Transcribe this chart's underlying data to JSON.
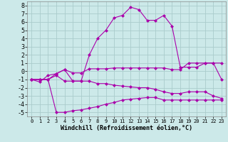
{
  "xlabel": "Windchill (Refroidissement éolien,°C)",
  "xlim": [
    -0.5,
    23.5
  ],
  "ylim": [
    -5.5,
    8.5
  ],
  "xticks": [
    0,
    1,
    2,
    3,
    4,
    5,
    6,
    7,
    8,
    9,
    10,
    11,
    12,
    13,
    14,
    15,
    16,
    17,
    18,
    19,
    20,
    21,
    22,
    23
  ],
  "yticks": [
    -5,
    -4,
    -3,
    -2,
    -1,
    0,
    1,
    2,
    3,
    4,
    5,
    6,
    7,
    8
  ],
  "background_color": "#cce9e9",
  "grid_color": "#aacccc",
  "line_color": "#aa00aa",
  "series": [
    {
      "x": [
        0,
        1,
        2,
        3,
        4,
        5,
        6,
        7,
        8,
        9,
        10,
        11,
        12,
        13,
        14,
        15,
        16,
        17,
        18,
        19,
        20,
        21,
        22,
        23
      ],
      "y": [
        -1,
        -1.3,
        -0.5,
        -0.3,
        0.2,
        -1.2,
        -1.2,
        2,
        4,
        5,
        6.5,
        6.8,
        7.8,
        7.5,
        6.2,
        6.2,
        6.8,
        5.5,
        0.5,
        0.5,
        0.5,
        1.0,
        1.0,
        -1.0
      ]
    },
    {
      "x": [
        0,
        1,
        2,
        3,
        4,
        5,
        6,
        7,
        8,
        9,
        10,
        11,
        12,
        13,
        14,
        15,
        16,
        17,
        18,
        19,
        20,
        21,
        22,
        23
      ],
      "y": [
        -1,
        -1,
        -1,
        -0.3,
        0.2,
        -0.2,
        -0.2,
        0.3,
        0.3,
        0.3,
        0.4,
        0.4,
        0.4,
        0.4,
        0.4,
        0.4,
        0.4,
        0.2,
        0.2,
        1.0,
        1.0,
        1.0,
        1.0,
        1.0
      ]
    },
    {
      "x": [
        0,
        1,
        2,
        3,
        4,
        5,
        6,
        7,
        8,
        9,
        10,
        11,
        12,
        13,
        14,
        15,
        16,
        17,
        18,
        19,
        20,
        21,
        22,
        23
      ],
      "y": [
        -1,
        -1,
        -1,
        -0.5,
        -1.2,
        -1.2,
        -1.2,
        -1.2,
        -1.5,
        -1.5,
        -1.7,
        -1.8,
        -1.9,
        -2.0,
        -2.0,
        -2.2,
        -2.5,
        -2.7,
        -2.7,
        -2.5,
        -2.5,
        -2.5,
        -3.0,
        -3.3
      ]
    },
    {
      "x": [
        0,
        1,
        2,
        3,
        4,
        5,
        6,
        7,
        8,
        9,
        10,
        11,
        12,
        13,
        14,
        15,
        16,
        17,
        18,
        19,
        20,
        21,
        22,
        23
      ],
      "y": [
        -1,
        -1,
        -1,
        -5,
        -5,
        -4.8,
        -4.7,
        -4.5,
        -4.3,
        -4.0,
        -3.8,
        -3.5,
        -3.4,
        -3.3,
        -3.2,
        -3.2,
        -3.5,
        -3.5,
        -3.5,
        -3.5,
        -3.5,
        -3.5,
        -3.5,
        -3.5
      ]
    }
  ],
  "font_size_xlabel": 6,
  "font_size_yticks": 6,
  "font_size_xticks": 5,
  "marker": "D",
  "marker_size": 2.0,
  "linewidth": 0.8
}
